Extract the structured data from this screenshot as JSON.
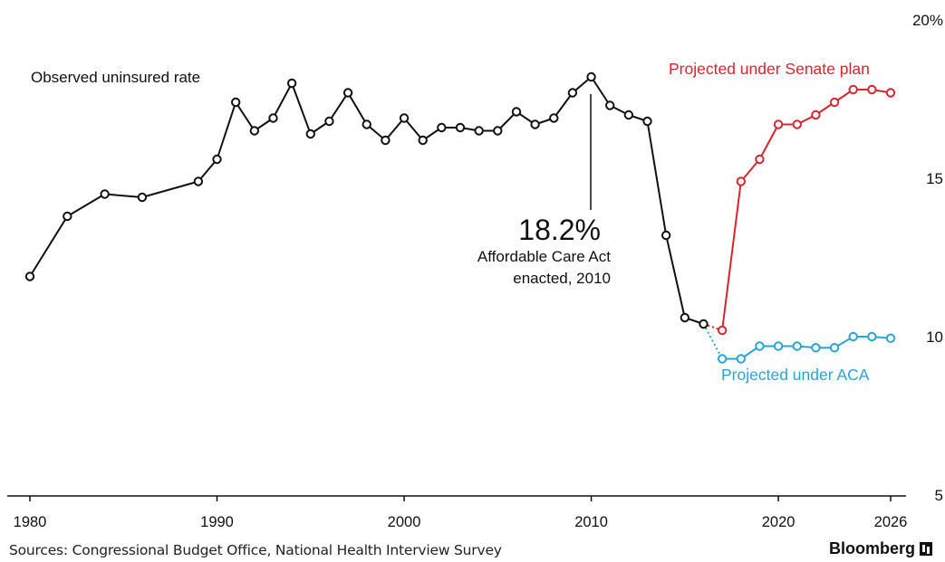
{
  "chart_data": {
    "type": "line",
    "y_unit_label": "20%",
    "ylim": [
      5,
      20
    ],
    "y_ticks": [
      {
        "value": 20,
        "label": "20%"
      },
      {
        "value": 15,
        "label": "15"
      },
      {
        "value": 10,
        "label": "10"
      },
      {
        "value": 5,
        "label": "5"
      }
    ],
    "xlim": [
      1980,
      2026
    ],
    "x_ticks": [
      {
        "value": 1980,
        "label": "1980"
      },
      {
        "value": 1990,
        "label": "1990"
      },
      {
        "value": 2000,
        "label": "2000"
      },
      {
        "value": 2010,
        "label": "2010"
      },
      {
        "value": 2020,
        "label": "2020"
      },
      {
        "value": 2026,
        "label": "2026"
      }
    ],
    "series": [
      {
        "name": "Observed uninsured rate",
        "color": "#111111",
        "points": [
          [
            1980,
            11.9
          ],
          [
            1982,
            13.8
          ],
          [
            1984,
            14.5
          ],
          [
            1986,
            14.4
          ],
          [
            1989,
            14.9
          ],
          [
            1990,
            15.6
          ],
          [
            1991,
            17.4
          ],
          [
            1992,
            16.5
          ],
          [
            1993,
            16.9
          ],
          [
            1994,
            18.0
          ],
          [
            1995,
            16.4
          ],
          [
            1996,
            16.8
          ],
          [
            1997,
            17.7
          ],
          [
            1998,
            16.7
          ],
          [
            1999,
            16.2
          ],
          [
            2000,
            16.9
          ],
          [
            2001,
            16.2
          ],
          [
            2002,
            16.6
          ],
          [
            2003,
            16.6
          ],
          [
            2004,
            16.5
          ],
          [
            2005,
            16.5
          ],
          [
            2006,
            17.1
          ],
          [
            2007,
            16.7
          ],
          [
            2008,
            16.9
          ],
          [
            2009,
            17.7
          ],
          [
            2010,
            18.2
          ],
          [
            2011,
            17.3
          ],
          [
            2012,
            17.0
          ],
          [
            2013,
            16.8
          ],
          [
            2014,
            13.2
          ],
          [
            2015,
            10.6
          ],
          [
            2016,
            10.4
          ]
        ]
      },
      {
        "name": "Projected under Senate plan",
        "color": "#d7262f",
        "points": [
          [
            2017,
            10.2
          ],
          [
            2018,
            14.9
          ],
          [
            2019,
            15.6
          ],
          [
            2020,
            16.7
          ],
          [
            2021,
            16.7
          ],
          [
            2022,
            17.0
          ],
          [
            2023,
            17.4
          ],
          [
            2024,
            17.8
          ],
          [
            2025,
            17.8
          ],
          [
            2026,
            17.7
          ]
        ]
      },
      {
        "name": "Projected under ACA",
        "color": "#2aa4d5",
        "points": [
          [
            2017,
            9.3
          ],
          [
            2018,
            9.3
          ],
          [
            2019,
            9.7
          ],
          [
            2020,
            9.7
          ],
          [
            2021,
            9.7
          ],
          [
            2022,
            9.65
          ],
          [
            2023,
            9.65
          ],
          [
            2024,
            10.0
          ],
          [
            2025,
            10.0
          ],
          [
            2026,
            9.95
          ]
        ]
      }
    ],
    "annotations": {
      "observed_label": "Observed uninsured rate",
      "senate_label": "Projected under Senate plan",
      "aca_label": "Projected under ACA",
      "peak_value": "18.2%",
      "peak_line1": "Affordable Care Act",
      "peak_line2": "enacted, 2010"
    }
  },
  "footer": {
    "sources": "Sources: Congressional Budget Office, National Health Interview Survey",
    "brand": "Bloomberg"
  }
}
